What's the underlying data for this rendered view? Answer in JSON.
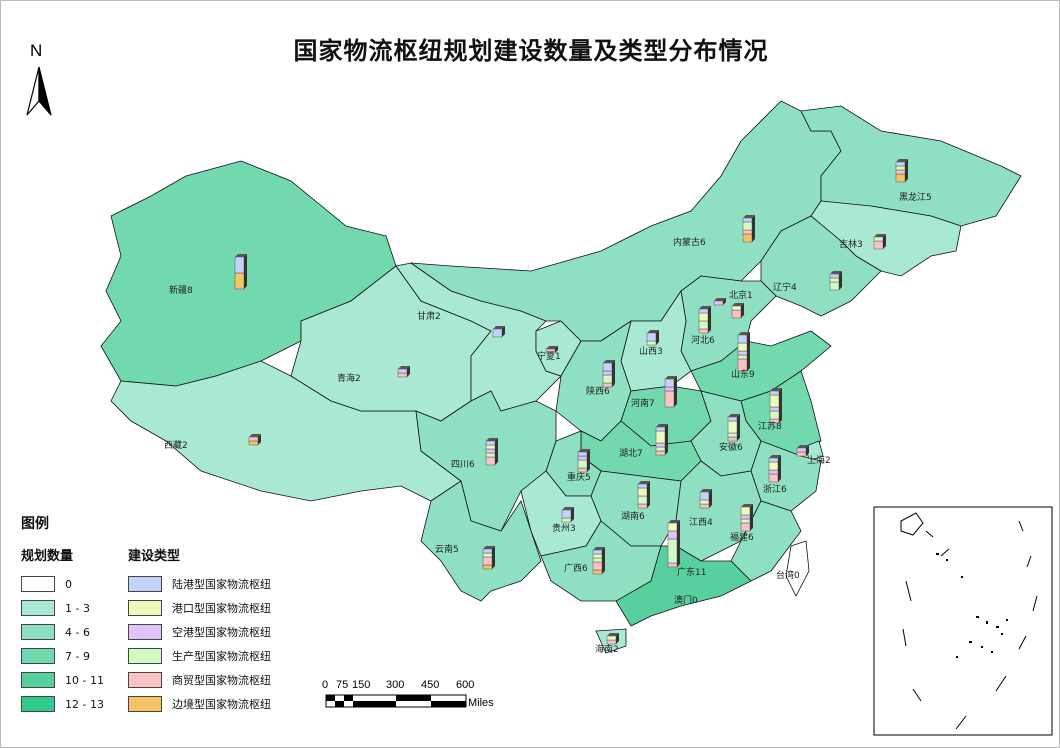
{
  "title": "国家物流枢纽规划建设数量及类型分布情况",
  "north_arrow": "N",
  "legend": {
    "heading": "图例",
    "count_heading": "规划数量",
    "type_heading": "建设类型",
    "count_classes": [
      {
        "label": "0",
        "color": "#ffffff"
      },
      {
        "label": "1 - 3",
        "color": "#a9e9d4"
      },
      {
        "label": "4 - 6",
        "color": "#8fe0c2"
      },
      {
        "label": "7 - 9",
        "color": "#72d8ae"
      },
      {
        "label": "10 - 11",
        "color": "#58d09d"
      },
      {
        "label": "12 - 13",
        "color": "#34c98c"
      }
    ],
    "types": [
      {
        "key": "L",
        "label": "陆港型国家物流枢纽",
        "color": "#c2d2fa"
      },
      {
        "key": "G",
        "label": "港口型国家物流枢纽",
        "color": "#ecfabc"
      },
      {
        "key": "K",
        "label": "空港型国家物流枢纽",
        "color": "#e2c2fa"
      },
      {
        "key": "S",
        "label": "生产型国家物流枢纽",
        "color": "#d4fac4"
      },
      {
        "key": "M",
        "label": "商贸型国家物流枢纽",
        "color": "#fac2c2"
      },
      {
        "key": "B",
        "label": "边境型国家物流枢纽",
        "color": "#f4c466"
      }
    ]
  },
  "scale_bar": {
    "ticks": [
      "0",
      "75",
      "150",
      "300",
      "450",
      "600"
    ],
    "unit": "Miles"
  },
  "provinces": [
    {
      "name": "新疆",
      "count": 8,
      "bar": {
        "L": 4,
        "B": 4
      }
    },
    {
      "name": "西藏",
      "count": 2,
      "bar": {
        "M": 1,
        "B": 1
      }
    },
    {
      "name": "青海",
      "count": 2,
      "bar": {
        "L": 1,
        "M": 1
      }
    },
    {
      "name": "甘肃",
      "count": 2,
      "bar": {
        "L": 2
      }
    },
    {
      "name": "宁夏",
      "count": 1,
      "bar": {
        "M": 1
      }
    },
    {
      "name": "内蒙古",
      "count": 6,
      "bar": {
        "L": 1,
        "S": 2,
        "M": 1,
        "B": 2
      }
    },
    {
      "name": "黑龙江",
      "count": 5,
      "bar": {
        "L": 1,
        "S": 1,
        "M": 1,
        "B": 2
      }
    },
    {
      "name": "吉林",
      "count": 3,
      "bar": {
        "S": 1,
        "M": 2
      }
    },
    {
      "name": "辽宁",
      "count": 4,
      "bar": {
        "L": 1,
        "G": 1,
        "S": 2
      }
    },
    {
      "name": "北京",
      "count": 1,
      "bar": {
        "K": 1
      }
    },
    {
      "name": "",
      "count": null,
      "bar": {
        "G": 1,
        "M": 2
      }
    },
    {
      "name": "河北",
      "count": 6,
      "bar": {
        "L": 1,
        "G": 2,
        "S": 2,
        "M": 1
      }
    },
    {
      "name": "山西",
      "count": 3,
      "bar": {
        "L": 2,
        "S": 1
      }
    },
    {
      "name": "山东",
      "count": 9,
      "bar": {
        "L": 2,
        "G": 2,
        "K": 1,
        "S": 1,
        "M": 3
      }
    },
    {
      "name": "陕西",
      "count": 6,
      "bar": {
        "L": 2,
        "K": 1,
        "S": 2,
        "M": 1
      }
    },
    {
      "name": "河南",
      "count": 7,
      "bar": {
        "L": 2,
        "K": 1,
        "M": 4
      }
    },
    {
      "name": "江苏",
      "count": 8,
      "bar": {
        "L": 1,
        "G": 3,
        "K": 1,
        "S": 2,
        "M": 1
      }
    },
    {
      "name": "安徽",
      "count": 6,
      "bar": {
        "L": 1,
        "G": 3,
        "S": 1,
        "M": 1
      }
    },
    {
      "name": "上海",
      "count": 2,
      "bar": {
        "K": 1,
        "M": 1
      }
    },
    {
      "name": "湖北",
      "count": 7,
      "bar": {
        "L": 1,
        "G": 3,
        "K": 1,
        "S": 1,
        "M": 1
      }
    },
    {
      "name": "重庆",
      "count": 5,
      "bar": {
        "L": 1,
        "K": 1,
        "S": 2,
        "M": 1
      }
    },
    {
      "name": "四川",
      "count": 6,
      "bar": {
        "L": 1,
        "G": 1,
        "K": 1,
        "S": 1,
        "M": 2
      }
    },
    {
      "name": "浙江",
      "count": 6,
      "bar": {
        "L": 1,
        "K": 1,
        "G": 2,
        "M": 2
      }
    },
    {
      "name": "湖南",
      "count": 6,
      "bar": {
        "L": 1,
        "G": 2,
        "S": 2,
        "M": 1
      }
    },
    {
      "name": "江西",
      "count": 4,
      "bar": {
        "L": 2,
        "G": 1,
        "M": 1
      }
    },
    {
      "name": "福建",
      "count": 6,
      "bar": {
        "G": 2,
        "K": 1,
        "S": 1,
        "M": 2
      }
    },
    {
      "name": "贵州",
      "count": 3,
      "bar": {
        "L": 2,
        "S": 1
      }
    },
    {
      "name": "云南",
      "count": 5,
      "bar": {
        "L": 1,
        "S": 1,
        "M": 2,
        "B": 1
      }
    },
    {
      "name": "广西",
      "count": 6,
      "bar": {
        "L": 1,
        "G": 1,
        "S": 1,
        "M": 2,
        "B": 1
      }
    },
    {
      "name": "广东",
      "count": 11,
      "bar": {
        "G": 2,
        "K": 2,
        "S": 6,
        "M": 1
      }
    },
    {
      "name": "澳门",
      "count": 0,
      "bar": {}
    },
    {
      "name": "台湾",
      "count": 0,
      "bar": {}
    },
    {
      "name": "海南",
      "count": 2,
      "bar": {
        "G": 1,
        "M": 1
      }
    }
  ]
}
